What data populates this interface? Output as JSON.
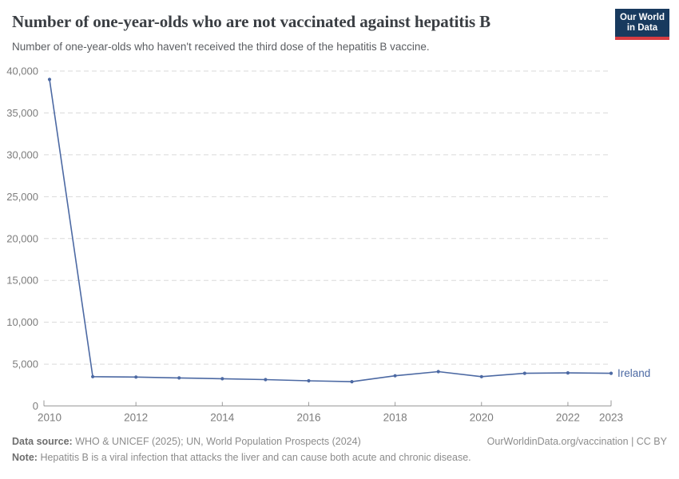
{
  "header": {
    "title": "Number of one-year-olds who are not vaccinated against hepatitis B",
    "subtitle": "Number of one-year-olds who haven't received the third dose of the hepatitis B vaccine.",
    "logo": {
      "line1": "Our World",
      "line2": "in Data",
      "bg_color": "#183a5e",
      "accent_color": "#d73c41"
    }
  },
  "chart_data": {
    "type": "line",
    "title": "Number of one-year-olds who are not vaccinated against hepatitis B",
    "x": [
      2010,
      2011,
      2012,
      2013,
      2014,
      2015,
      2016,
      2017,
      2018,
      2019,
      2020,
      2021,
      2022,
      2023
    ],
    "series": [
      {
        "name": "Ireland",
        "color": "#4c69a3",
        "values": [
          39000,
          3500,
          3450,
          3350,
          3250,
          3150,
          3000,
          2900,
          3600,
          4100,
          3500,
          3900,
          3950,
          3900
        ]
      }
    ],
    "x_ticks": [
      2010,
      2012,
      2014,
      2016,
      2018,
      2020,
      2022,
      2023
    ],
    "x_minor_tick_years": [
      2012,
      2014,
      2016,
      2018,
      2020,
      2022
    ],
    "y_ticks": [
      0,
      5000,
      10000,
      15000,
      20000,
      25000,
      30000,
      35000,
      40000
    ],
    "x_range": [
      2010,
      2023
    ],
    "y_range": [
      0,
      40000
    ],
    "grid": "horizontal-dashed",
    "legend": "end-of-line-label",
    "colors": {
      "gridline": "#dadada",
      "axis": "#9a9a9a",
      "tick_label": "#7c7c7c"
    }
  },
  "footer": {
    "source_label": "Data source:",
    "source_text": "WHO & UNICEF (2025); UN, World Population Prospects (2024)",
    "rights_text": "OurWorldinData.org/vaccination | CC BY",
    "note_label": "Note:",
    "note_text": "Hepatitis B is a viral infection that attacks the liver and can cause both acute and chronic disease."
  }
}
